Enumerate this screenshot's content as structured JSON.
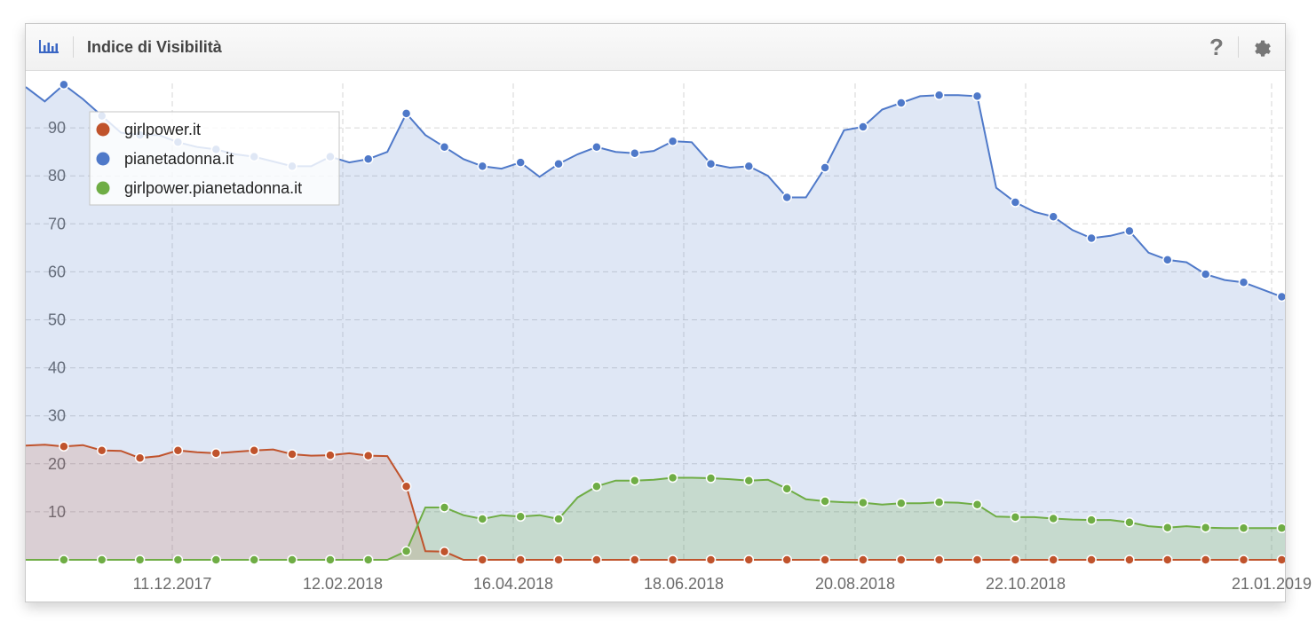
{
  "header": {
    "title": "Indice di Visibilità",
    "help_label": "?"
  },
  "icons": {
    "chart": "bar-chart-icon",
    "help": "help-icon",
    "settings": "gear-icon"
  },
  "chart_data": {
    "type": "area",
    "x_ticks": [
      "11.12.2017",
      "12.02.2018",
      "16.04.2018",
      "18.06.2018",
      "20.08.2018",
      "22.10.2018",
      "21.01.2019"
    ],
    "y_ticks": [
      10,
      20,
      30,
      40,
      50,
      60,
      70,
      80,
      90
    ],
    "ylim": [
      0,
      100
    ],
    "grid": true,
    "legend_position": "top-left",
    "x": [
      0,
      1,
      2,
      3,
      4,
      5,
      6,
      7,
      8,
      9,
      10,
      11,
      12,
      13,
      14,
      15,
      16,
      17,
      18,
      19,
      20,
      21,
      22,
      23,
      24,
      25,
      26,
      27,
      28,
      29,
      30,
      31,
      32,
      33,
      34,
      35,
      36,
      37,
      38,
      39,
      40,
      41,
      42,
      43,
      44,
      45,
      46,
      47,
      48,
      49,
      50,
      51,
      52,
      53,
      54,
      55,
      56,
      57,
      58,
      59,
      60,
      61,
      62,
      63,
      64,
      65,
      66,
      67
    ],
    "series": [
      {
        "name": "girlpower.it",
        "color": "#c0532c",
        "values": [
          23.8,
          24.0,
          23.6,
          23.9,
          22.8,
          22.7,
          21.2,
          21.6,
          22.8,
          22.4,
          22.2,
          22.5,
          22.8,
          23.0,
          22.0,
          21.7,
          21.8,
          22.2,
          21.7,
          21.6,
          15.3,
          1.8,
          1.7,
          0,
          0,
          0,
          0,
          0,
          0,
          0,
          0,
          0,
          0,
          0,
          0,
          0,
          0,
          0,
          0,
          0,
          0,
          0,
          0,
          0,
          0,
          0,
          0,
          0,
          0,
          0,
          0,
          0,
          0,
          0,
          0,
          0,
          0,
          0,
          0,
          0,
          0,
          0,
          0,
          0,
          0,
          0,
          0,
          0
        ]
      },
      {
        "name": "pianetadonna.it",
        "color": "#4f79c9",
        "values": [
          98.5,
          95.5,
          99.0,
          96.0,
          92.5,
          89.0,
          88.5,
          88.5,
          87.0,
          86.0,
          85.5,
          84.5,
          84.0,
          83.0,
          82.0,
          82.0,
          84.0,
          82.8,
          83.5,
          85.0,
          93.0,
          88.5,
          86.0,
          83.5,
          82.0,
          81.5,
          82.8,
          79.8,
          82.5,
          84.5,
          86.0,
          85.0,
          84.7,
          85.2,
          87.2,
          87.0,
          82.5,
          81.7,
          82.0,
          80.0,
          75.5,
          75.5,
          81.7,
          89.5,
          90.2,
          93.8,
          95.2,
          96.6,
          96.8,
          96.8,
          96.6,
          77.5,
          74.5,
          72.5,
          71.5,
          68.7,
          67.0,
          67.5,
          68.5,
          64.0,
          62.5,
          62.0,
          59.5,
          58.3,
          57.8,
          56.3,
          54.8,
          54.8
        ]
      },
      {
        "name": "girlpower.pianetadonna.it",
        "color": "#6fad45",
        "values": [
          0,
          0,
          0,
          0,
          0,
          0,
          0,
          0,
          0,
          0,
          0,
          0,
          0,
          0,
          0,
          0,
          0,
          0,
          0,
          0,
          1.8,
          10.9,
          10.9,
          9.3,
          8.5,
          9.3,
          9.0,
          9.3,
          8.5,
          13.0,
          15.3,
          16.5,
          16.5,
          16.7,
          17.1,
          17.1,
          17.0,
          16.8,
          16.5,
          16.7,
          14.8,
          12.6,
          12.2,
          12.0,
          11.9,
          11.5,
          11.8,
          11.8,
          12.0,
          11.9,
          11.5,
          9.0,
          8.9,
          8.9,
          8.6,
          8.4,
          8.3,
          8.3,
          7.8,
          7.0,
          6.7,
          7.0,
          6.7,
          6.6,
          6.6,
          6.6,
          6.6,
          6.6
        ]
      }
    ]
  }
}
